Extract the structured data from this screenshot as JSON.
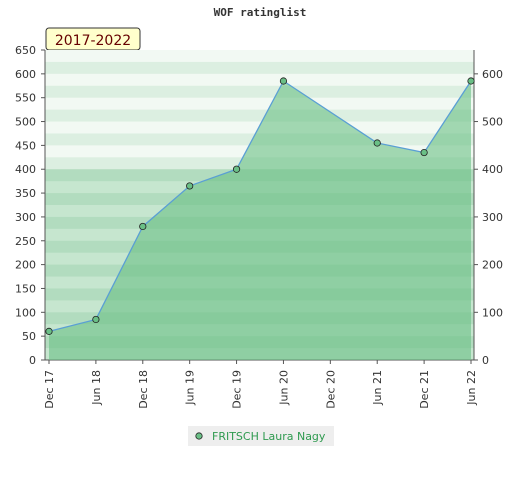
{
  "chart_data": {
    "type": "line",
    "title": "WOF ratinglist",
    "badge": "2017-2022",
    "categories": [
      "Dec 17",
      "Jun 18",
      "Dec 18",
      "Jun 19",
      "Dec 19",
      "Jun 20",
      "Dec 20",
      "Jun 21",
      "Dec 21",
      "Jun 22"
    ],
    "series": [
      {
        "name": "FRITSCH Laura Nagy",
        "color": "#5a9fd4",
        "marker_color": "#6abf86",
        "x": [
          "Dec 17",
          "Jun 18",
          "Dec 18",
          "Jun 19",
          "Dec 19",
          "Jun 20",
          "Jun 21",
          "Dec 21",
          "Jun 22"
        ],
        "values": [
          60,
          85,
          280,
          365,
          400,
          585,
          455,
          435,
          585
        ]
      }
    ],
    "ylim": [
      0,
      650
    ],
    "yticks": [
      0,
      50,
      100,
      150,
      200,
      250,
      300,
      350,
      400,
      450,
      500,
      550,
      600,
      650
    ],
    "y2lim": [
      0,
      650
    ],
    "y2ticks": [
      0,
      100,
      200,
      300,
      400,
      500,
      600
    ]
  }
}
